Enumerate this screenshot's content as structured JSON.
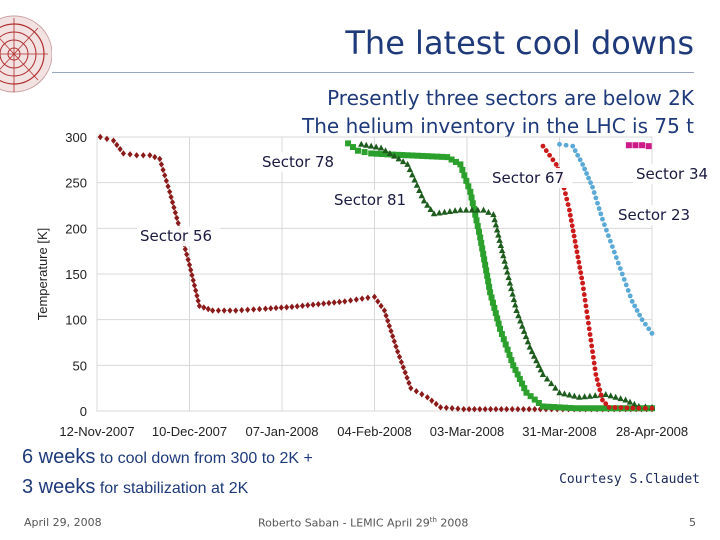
{
  "slide": {
    "title": "The latest cool downs",
    "subtitle_line1": "Presently three sectors are below 2K",
    "subtitle_line2": "The helium inventory in the LHC is 75 t",
    "note_line1_big": "6 weeks",
    "note_line1_small": " to cool down from 300 to 2K +",
    "note_line2_big": "3 weeks",
    "note_line2_small": " for stabilization at 2K",
    "courtesy": "Courtesy S.Claudet",
    "footer_date": "April 29, 2008",
    "footer_center_a": "Roberto Saban - LEMIC April 29",
    "footer_center_sup": "th",
    "footer_center_b": " 2008",
    "page_number": "5",
    "logo_icon": "cern-accelerator-rings-icon"
  },
  "chart_data": {
    "type": "scatter",
    "title": "",
    "xlabel": "",
    "ylabel": "Temperature [K]",
    "x_ticks": [
      "12-Nov-2007",
      "10-Dec-2007",
      "07-Jan-2008",
      "04-Feb-2008",
      "03-Mar-2008",
      "31-Mar-2008",
      "28-Apr-2008"
    ],
    "xlim": [
      "12-Nov-2007",
      "28-Apr-2008"
    ],
    "ylim": [
      0,
      300
    ],
    "y_ticks": [
      0,
      50,
      100,
      150,
      200,
      250,
      300
    ],
    "grid": true,
    "series": [
      {
        "name": "Sector 56",
        "color": "#8b1a1a",
        "marker": "diamond",
        "points": [
          [
            "2007-11-13",
            300
          ],
          [
            "2007-11-17",
            296
          ],
          [
            "2007-11-20",
            282
          ],
          [
            "2007-11-24",
            280
          ],
          [
            "2007-11-28",
            280
          ],
          [
            "2007-12-01",
            276
          ],
          [
            "2007-12-04",
            240
          ],
          [
            "2007-12-07",
            200
          ],
          [
            "2007-12-10",
            160
          ],
          [
            "2007-12-13",
            115
          ],
          [
            "2007-12-17",
            110
          ],
          [
            "2007-12-24",
            110
          ],
          [
            "2008-01-02",
            112
          ],
          [
            "2008-01-10",
            114
          ],
          [
            "2008-01-18",
            117
          ],
          [
            "2008-01-26",
            120
          ],
          [
            "2008-02-02",
            124
          ],
          [
            "2008-02-04",
            125
          ],
          [
            "2008-02-07",
            110
          ],
          [
            "2008-02-11",
            65
          ],
          [
            "2008-02-15",
            25
          ],
          [
            "2008-02-20",
            15
          ],
          [
            "2008-02-24",
            4
          ],
          [
            "2008-03-02",
            2
          ],
          [
            "2008-03-15",
            2
          ],
          [
            "2008-04-01",
            2
          ],
          [
            "2008-04-20",
            2
          ],
          [
            "2008-04-28",
            2
          ]
        ]
      },
      {
        "name": "Sector 78",
        "color": "#2ca02c",
        "marker": "square",
        "points": [
          [
            "2008-01-27",
            293
          ],
          [
            "2008-01-30",
            285
          ],
          [
            "2008-02-03",
            282
          ],
          [
            "2008-02-08",
            281
          ],
          [
            "2008-02-14",
            280
          ],
          [
            "2008-02-20",
            279
          ],
          [
            "2008-02-26",
            278
          ],
          [
            "2008-03-01",
            270
          ],
          [
            "2008-03-04",
            240
          ],
          [
            "2008-03-07",
            190
          ],
          [
            "2008-03-10",
            130
          ],
          [
            "2008-03-13",
            90
          ],
          [
            "2008-03-17",
            50
          ],
          [
            "2008-03-21",
            20
          ],
          [
            "2008-03-26",
            5
          ],
          [
            "2008-04-05",
            3
          ],
          [
            "2008-04-20",
            3
          ],
          [
            "2008-04-28",
            3
          ]
        ]
      },
      {
        "name": "Sector 81",
        "color": "#1e5c1e",
        "marker": "triangle",
        "points": [
          [
            "2008-01-31",
            292
          ],
          [
            "2008-02-03",
            290
          ],
          [
            "2008-02-06",
            288
          ],
          [
            "2008-02-10",
            279
          ],
          [
            "2008-02-14",
            270
          ],
          [
            "2008-02-19",
            230
          ],
          [
            "2008-02-22",
            216
          ],
          [
            "2008-03-01",
            220
          ],
          [
            "2008-03-08",
            220
          ],
          [
            "2008-03-11",
            215
          ],
          [
            "2008-03-14",
            170
          ],
          [
            "2008-03-18",
            110
          ],
          [
            "2008-03-22",
            70
          ],
          [
            "2008-03-26",
            40
          ],
          [
            "2008-03-31",
            20
          ],
          [
            "2008-04-06",
            15
          ],
          [
            "2008-04-14",
            18
          ],
          [
            "2008-04-20",
            12
          ],
          [
            "2008-04-24",
            5
          ],
          [
            "2008-04-28",
            4
          ]
        ]
      },
      {
        "name": "Sector 67",
        "color": "#cc1a1a",
        "marker": "circle",
        "points": [
          [
            "2008-03-26",
            290
          ],
          [
            "2008-03-28",
            280
          ],
          [
            "2008-03-30",
            270
          ],
          [
            "2008-04-01",
            250
          ],
          [
            "2008-04-03",
            220
          ],
          [
            "2008-04-05",
            180
          ],
          [
            "2008-04-07",
            140
          ],
          [
            "2008-04-09",
            90
          ],
          [
            "2008-04-11",
            40
          ],
          [
            "2008-04-13",
            12
          ],
          [
            "2008-04-15",
            4
          ],
          [
            "2008-04-24",
            3
          ],
          [
            "2008-04-28",
            3
          ]
        ]
      },
      {
        "name": "Sector 23",
        "color": "#5aa9d6",
        "marker": "circle",
        "points": [
          [
            "2008-03-31",
            292
          ],
          [
            "2008-04-04",
            290
          ],
          [
            "2008-04-07",
            270
          ],
          [
            "2008-04-10",
            245
          ],
          [
            "2008-04-13",
            210
          ],
          [
            "2008-04-16",
            180
          ],
          [
            "2008-04-19",
            150
          ],
          [
            "2008-04-22",
            120
          ],
          [
            "2008-04-25",
            100
          ],
          [
            "2008-04-28",
            85
          ]
        ]
      },
      {
        "name": "Sector 34",
        "color": "#cc1a88",
        "marker": "square",
        "points": [
          [
            "2008-04-21",
            291
          ],
          [
            "2008-04-23",
            291
          ],
          [
            "2008-04-25",
            291
          ],
          [
            "2008-04-27",
            290
          ]
        ]
      }
    ],
    "annotations": [
      {
        "text": "Sector 56",
        "series": "Sector 56"
      },
      {
        "text": "Sector 78",
        "series": "Sector 78"
      },
      {
        "text": "Sector 81",
        "series": "Sector 81"
      },
      {
        "text": "Sector 67",
        "series": "Sector 67"
      },
      {
        "text": "Sector 34",
        "series": "Sector 34"
      },
      {
        "text": "Sector 23",
        "series": "Sector 23"
      }
    ]
  }
}
